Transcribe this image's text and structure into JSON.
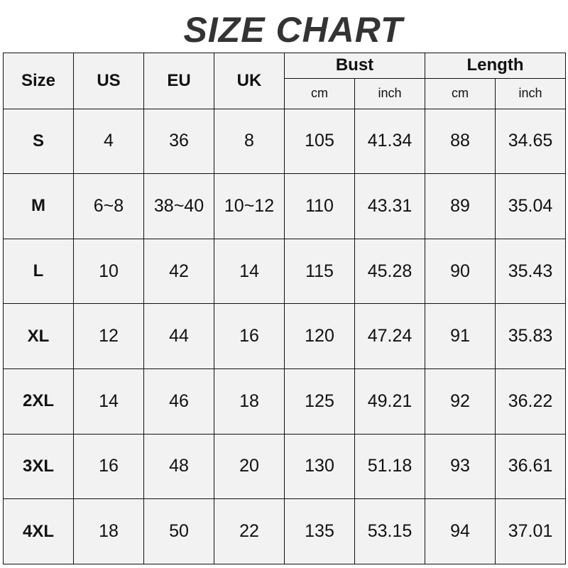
{
  "title": "SIZE CHART",
  "chart_data": {
    "type": "table",
    "title": "SIZE CHART",
    "columns": [
      "Size",
      "US",
      "EU",
      "UK",
      "Bust",
      "Length"
    ],
    "sub_columns": {
      "Bust": [
        "cm",
        "inch"
      ],
      "Length": [
        "cm",
        "inch"
      ]
    },
    "rows": [
      [
        "S",
        "4",
        "36",
        "8",
        "105",
        "41.34",
        "88",
        "34.65"
      ],
      [
        "M",
        "6~8",
        "38~40",
        "10~12",
        "110",
        "43.31",
        "89",
        "35.04"
      ],
      [
        "L",
        "10",
        "42",
        "14",
        "115",
        "45.28",
        "90",
        "35.43"
      ],
      [
        "XL",
        "12",
        "44",
        "16",
        "120",
        "47.24",
        "91",
        "35.83"
      ],
      [
        "2XL",
        "14",
        "46",
        "18",
        "125",
        "49.21",
        "92",
        "36.22"
      ],
      [
        "3XL",
        "16",
        "48",
        "20",
        "130",
        "51.18",
        "93",
        "36.61"
      ],
      [
        "4XL",
        "18",
        "50",
        "22",
        "135",
        "53.15",
        "94",
        "37.01"
      ]
    ]
  },
  "colors": {
    "cell_background": "#f2f2f2",
    "border": "#111111",
    "title": "#333333"
  }
}
